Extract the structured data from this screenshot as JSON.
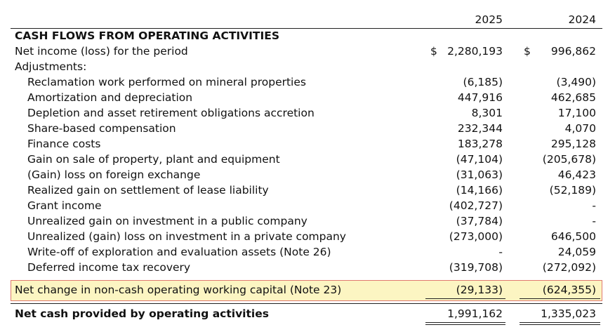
{
  "header": {
    "year_2025": "2025",
    "year_2024": "2024"
  },
  "section_title": "CASH FLOWS FROM OPERATING ACTIVITIES",
  "net_income": {
    "label": "Net income (loss) for the period",
    "currency_symbol": "$",
    "v2025": "2,280,193",
    "v2024": "996,862"
  },
  "adjustments_label": "Adjustments:",
  "adjustments": [
    {
      "label": "Reclamation work performed on mineral properties",
      "v2025": "(6,185)",
      "v2024": "(3,490)"
    },
    {
      "label": "Amortization and depreciation",
      "v2025": "447,916",
      "v2024": "462,685"
    },
    {
      "label": "Depletion and asset retirement obligations accretion",
      "v2025": "8,301",
      "v2024": "17,100"
    },
    {
      "label": "Share-based compensation",
      "v2025": "232,344",
      "v2024": "4,070"
    },
    {
      "label": "Finance costs",
      "v2025": "183,278",
      "v2024": "295,128"
    },
    {
      "label": "Gain on sale of property, plant and equipment",
      "v2025": "(47,104)",
      "v2024": "(205,678)"
    },
    {
      "label": "(Gain) loss on foreign exchange",
      "v2025": "(31,063)",
      "v2024": "46,423"
    },
    {
      "label": "Realized gain on settlement of lease liability",
      "v2025": "(14,166)",
      "v2024": "(52,189)"
    },
    {
      "label": "Grant income",
      "v2025": "(402,727)",
      "v2024": "-"
    },
    {
      "label": "Unrealized gain on investment in a public company",
      "v2025": "(37,784)",
      "v2024": "-"
    },
    {
      "label": "Unrealized (gain) loss on investment in a private company",
      "v2025": "(273,000)",
      "v2024": "646,500"
    },
    {
      "label": "Write-off of exploration and evaluation assets (Note 26)",
      "v2025": "-",
      "v2024": "24,059"
    },
    {
      "label": "Deferred income tax recovery",
      "v2025": "(319,708)",
      "v2024": "(272,092)"
    }
  ],
  "working_capital": {
    "label": "Net change in non-cash operating working capital (Note 23)",
    "v2025": "(29,133)",
    "v2024": "(624,355)",
    "highlight_color": "#fcf5c2",
    "highlight_border": "#e07a6f"
  },
  "total": {
    "label": "Net cash provided by operating activities",
    "v2025": "1,991,162",
    "v2024": "1,335,023"
  }
}
